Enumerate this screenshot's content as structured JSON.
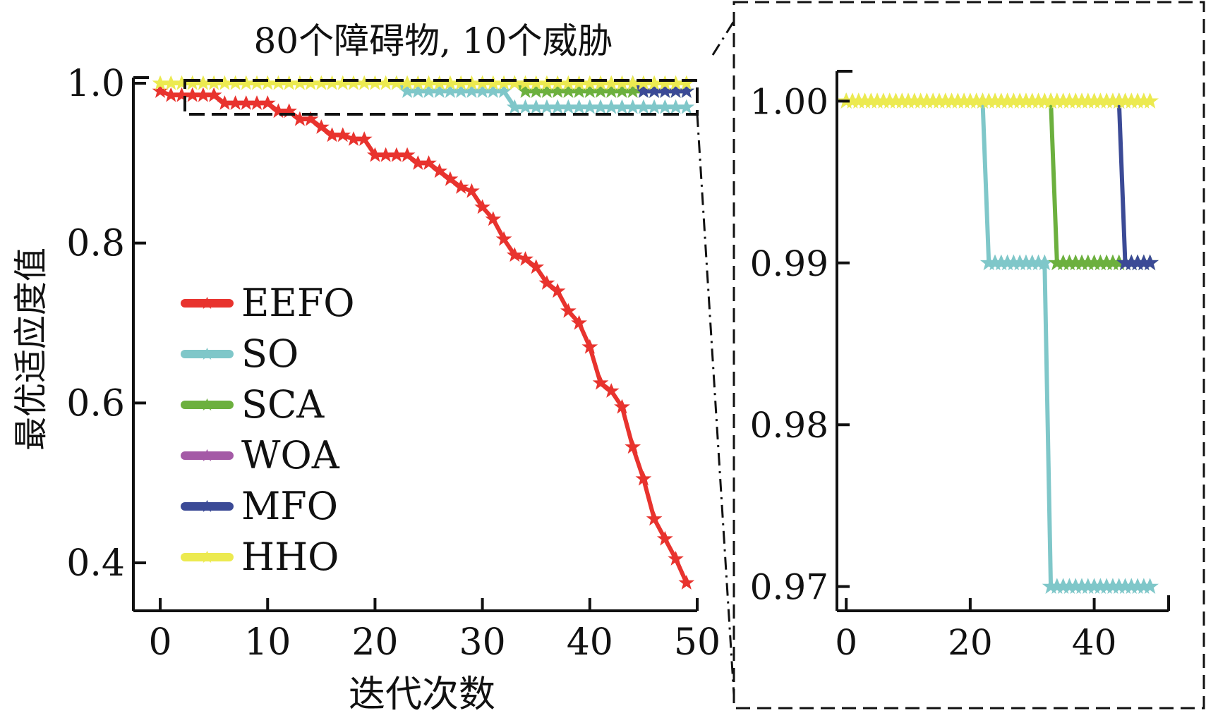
{
  "colors": {
    "EEFO": "#e8332e",
    "SO": "#7fc7c9",
    "SCA": "#6cb03e",
    "WOA": "#a45aa6",
    "MFO": "#3b4a96",
    "HHO": "#ecea50"
  },
  "chart_data": [
    {
      "type": "line",
      "title": "80个障碍物, 10个威胁",
      "xlabel": "迭代次数",
      "ylabel": "最优适应度值",
      "xlim": [
        -2.5,
        50
      ],
      "ylim": [
        0.34,
        1.0
      ],
      "xticks": [
        0,
        10,
        20,
        30,
        40,
        50
      ],
      "xtick_labels": [
        "0",
        "10",
        "20",
        "30",
        "40",
        "50"
      ],
      "yticks": [
        0.4,
        0.6,
        0.8,
        1.0
      ],
      "ytick_labels": [
        "0.4",
        "0.6",
        "0.8",
        "1.0"
      ],
      "legend_position": "left-center",
      "grid": false,
      "series": [
        {
          "name": "EEFO",
          "x": [
            0,
            1,
            2,
            3,
            4,
            5,
            6,
            7,
            8,
            9,
            10,
            11,
            12,
            13,
            14,
            15,
            16,
            17,
            18,
            19,
            20,
            21,
            22,
            23,
            24,
            25,
            26,
            27,
            28,
            29,
            30,
            31,
            32,
            33,
            34,
            35,
            36,
            37,
            38,
            39,
            40,
            41,
            42,
            43,
            44,
            45,
            46,
            47,
            48,
            49
          ],
          "y": [
            0.99,
            0.985,
            0.985,
            0.985,
            0.985,
            0.985,
            0.975,
            0.975,
            0.975,
            0.975,
            0.975,
            0.965,
            0.965,
            0.955,
            0.955,
            0.945,
            0.935,
            0.935,
            0.93,
            0.93,
            0.91,
            0.91,
            0.91,
            0.91,
            0.9,
            0.9,
            0.89,
            0.88,
            0.87,
            0.865,
            0.845,
            0.83,
            0.805,
            0.785,
            0.78,
            0.77,
            0.75,
            0.74,
            0.715,
            0.7,
            0.67,
            0.625,
            0.615,
            0.595,
            0.545,
            0.505,
            0.455,
            0.43,
            0.405,
            0.375
          ]
        },
        {
          "name": "SO",
          "x": [
            22,
            23,
            24,
            25,
            26,
            27,
            28,
            29,
            30,
            31,
            32,
            33,
            34,
            35,
            36,
            37,
            38,
            39,
            40,
            41,
            42,
            43,
            44,
            45,
            46,
            47,
            48,
            49
          ],
          "y": [
            1.0,
            0.99,
            0.99,
            0.99,
            0.99,
            0.99,
            0.99,
            0.99,
            0.99,
            0.99,
            0.99,
            0.97,
            0.97,
            0.97,
            0.97,
            0.97,
            0.97,
            0.97,
            0.97,
            0.97,
            0.97,
            0.97,
            0.97,
            0.97,
            0.97,
            0.97,
            0.97,
            0.97
          ]
        },
        {
          "name": "SCA",
          "x": [
            33,
            34,
            35,
            36,
            37,
            38,
            39,
            40,
            41,
            42,
            43,
            44,
            45,
            46,
            47,
            48,
            49
          ],
          "y": [
            1.0,
            0.99,
            0.99,
            0.99,
            0.99,
            0.99,
            0.99,
            0.99,
            0.99,
            0.99,
            0.99,
            0.99,
            0.99,
            0.99,
            0.99,
            0.99,
            0.99
          ]
        },
        {
          "name": "WOA",
          "x": [],
          "y": []
        },
        {
          "name": "MFO",
          "x": [
            44,
            45,
            46,
            47,
            48,
            49
          ],
          "y": [
            1.0,
            0.99,
            0.99,
            0.99,
            0.99,
            0.99
          ]
        },
        {
          "name": "HHO",
          "x": [
            0,
            1,
            2,
            3,
            4,
            5,
            6,
            7,
            8,
            9,
            10,
            11,
            12,
            13,
            14,
            15,
            16,
            17,
            18,
            19,
            20,
            21,
            22,
            23,
            24,
            25,
            26,
            27,
            28,
            29,
            30,
            31,
            32,
            33,
            34,
            35,
            36,
            37,
            38,
            39,
            40,
            41,
            42,
            43,
            44,
            45,
            46,
            47,
            48,
            49
          ],
          "y": [
            1.0,
            1.0,
            1.0,
            1.0,
            1.0,
            1.0,
            1.0,
            1.0,
            1.0,
            1.0,
            1.0,
            1.0,
            1.0,
            1.0,
            1.0,
            1.0,
            1.0,
            1.0,
            1.0,
            1.0,
            1.0,
            1.0,
            1.0,
            1.0,
            1.0,
            1.0,
            1.0,
            1.0,
            1.0,
            1.0,
            1.0,
            1.0,
            1.0,
            1.0,
            1.0,
            1.0,
            1.0,
            1.0,
            1.0,
            1.0,
            1.0,
            1.0,
            1.0,
            1.0,
            1.0,
            1.0,
            1.0,
            1.0,
            1.0,
            1.0
          ]
        }
      ]
    },
    {
      "type": "line",
      "xlim": [
        -1.5,
        52
      ],
      "ylim": [
        0.9685,
        1.0015
      ],
      "xticks": [
        0,
        20,
        40
      ],
      "xtick_labels": [
        "0",
        "20",
        "40"
      ],
      "yticks": [
        0.97,
        0.98,
        0.99,
        1.0
      ],
      "ytick_labels": [
        "0.97",
        "0.98",
        "0.99",
        "1.00"
      ],
      "grid": false,
      "series": [
        {
          "name": "SO",
          "x": [
            0,
            22,
            23,
            24,
            25,
            26,
            27,
            28,
            29,
            30,
            31,
            32,
            33,
            34,
            35,
            36,
            37,
            38,
            39,
            40,
            41,
            42,
            43,
            44,
            45,
            46,
            47,
            48,
            49
          ],
          "y": [
            1.0,
            1.0,
            0.99,
            0.99,
            0.99,
            0.99,
            0.99,
            0.99,
            0.99,
            0.99,
            0.99,
            0.99,
            0.97,
            0.97,
            0.97,
            0.97,
            0.97,
            0.97,
            0.97,
            0.97,
            0.97,
            0.97,
            0.97,
            0.97,
            0.97,
            0.97,
            0.97,
            0.97,
            0.97
          ]
        },
        {
          "name": "SCA",
          "x": [
            33,
            34,
            35,
            36,
            37,
            38,
            39,
            40,
            41,
            42,
            43,
            44,
            45,
            46,
            47,
            48,
            49
          ],
          "y": [
            1.0,
            0.99,
            0.99,
            0.99,
            0.99,
            0.99,
            0.99,
            0.99,
            0.99,
            0.99,
            0.99,
            0.99,
            0.99,
            0.99,
            0.99,
            0.99,
            0.99
          ]
        },
        {
          "name": "MFO",
          "x": [
            44,
            45,
            46,
            47,
            48,
            49
          ],
          "y": [
            1.0,
            0.99,
            0.99,
            0.99,
            0.99,
            0.99
          ]
        },
        {
          "name": "HHO",
          "x": [
            0,
            1,
            2,
            3,
            4,
            5,
            6,
            7,
            8,
            9,
            10,
            11,
            12,
            13,
            14,
            15,
            16,
            17,
            18,
            19,
            20,
            21,
            22,
            23,
            24,
            25,
            26,
            27,
            28,
            29,
            30,
            31,
            32,
            33,
            34,
            35,
            36,
            37,
            38,
            39,
            40,
            41,
            42,
            43,
            44,
            45,
            46,
            47,
            48,
            49
          ],
          "y": [
            1.0,
            1.0,
            1.0,
            1.0,
            1.0,
            1.0,
            1.0,
            1.0,
            1.0,
            1.0,
            1.0,
            1.0,
            1.0,
            1.0,
            1.0,
            1.0,
            1.0,
            1.0,
            1.0,
            1.0,
            1.0,
            1.0,
            1.0,
            1.0,
            1.0,
            1.0,
            1.0,
            1.0,
            1.0,
            1.0,
            1.0,
            1.0,
            1.0,
            1.0,
            1.0,
            1.0,
            1.0,
            1.0,
            1.0,
            1.0,
            1.0,
            1.0,
            1.0,
            1.0,
            1.0,
            1.0,
            1.0,
            1.0,
            1.0,
            1.0
          ]
        }
      ]
    }
  ]
}
